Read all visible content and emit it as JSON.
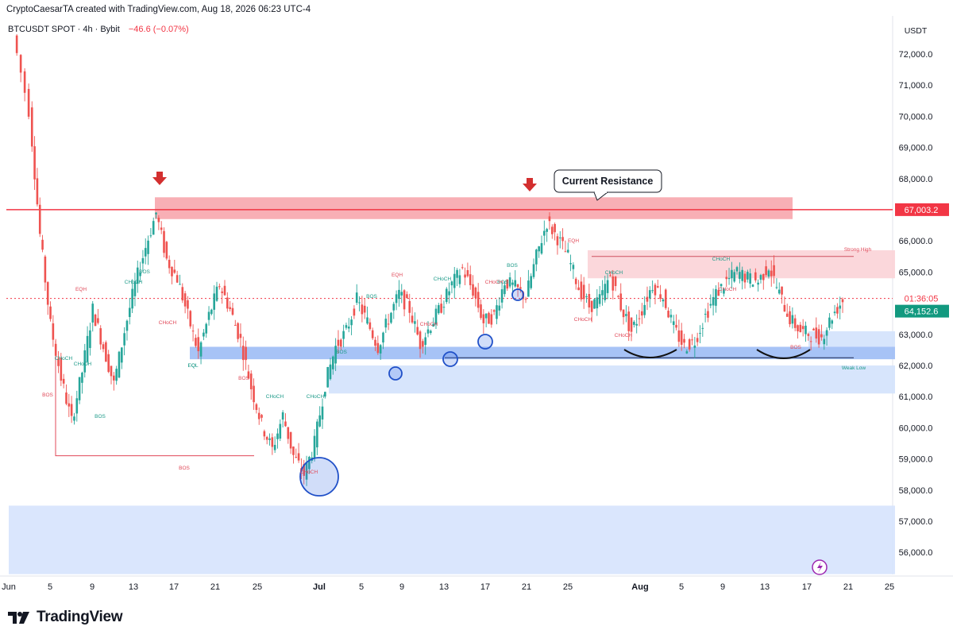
{
  "header": {
    "created_by": "CryptoCaesarTA created with TradingView.com, Aug 18, 2026 06:23 UTC-4"
  },
  "symbol": {
    "name": "BTCUSDT SPOT · 4h · Bybit",
    "change": "−46.6 (−0.07%)"
  },
  "footer": {
    "brand": "TradingView"
  },
  "colors": {
    "resistance_zone": "#f7a6ad",
    "support_zone": "#bcd3fb",
    "bull": "#26a69a",
    "bear": "#ef5350",
    "price_line": "#f23645",
    "arrow": "#d32f2f"
  },
  "chart_data": {
    "type": "candlestick",
    "y_unit": "USDT",
    "ylim": [
      55300,
      73000
    ],
    "y_ticks": [
      "72,000.0",
      "71,000.0",
      "70,000.0",
      "69,000.0",
      "68,000.0",
      "67,000.0",
      "66,000.0",
      "65,000.0",
      "64,000.0",
      "63,000.0",
      "62,000.0",
      "61,000.0",
      "60,000.0",
      "59,000.0",
      "58,000.0",
      "57,000.0",
      "56,000.0"
    ],
    "x_ticks": [
      "Jun",
      "5",
      "9",
      "13",
      "17",
      "21",
      "25",
      "Jul",
      "5",
      "9",
      "13",
      "17",
      "21",
      "25",
      "Aug",
      "5",
      "9",
      "13",
      "17",
      "21",
      "25"
    ],
    "price_labels": {
      "resistance": "67,003.2",
      "countdown": "01:36:05",
      "last_price": "64,152.6"
    },
    "price_path": [
      [
        0.5,
        72600
      ],
      [
        2,
        70200
      ],
      [
        3,
        66200
      ],
      [
        4,
        63300
      ],
      [
        5,
        61600
      ],
      [
        6,
        60200
      ],
      [
        7,
        61800
      ],
      [
        8,
        63800
      ],
      [
        9,
        62600
      ],
      [
        10,
        61400
      ],
      [
        11,
        63100
      ],
      [
        12,
        64600
      ],
      [
        13,
        65800
      ],
      [
        14,
        66900
      ],
      [
        15,
        65400
      ],
      [
        16,
        64800
      ],
      [
        17,
        63600
      ],
      [
        18,
        62400
      ],
      [
        19,
        63600
      ],
      [
        20,
        64600
      ],
      [
        21,
        63800
      ],
      [
        22,
        62800
      ],
      [
        23,
        61300
      ],
      [
        24,
        60100
      ],
      [
        25,
        59300
      ],
      [
        26,
        60400
      ],
      [
        27,
        59100
      ],
      [
        28,
        58500
      ],
      [
        29,
        59500
      ],
      [
        30,
        61400
      ],
      [
        31,
        62600
      ],
      [
        32,
        63100
      ],
      [
        33,
        64100
      ],
      [
        34,
        63400
      ],
      [
        35,
        62600
      ],
      [
        36,
        63500
      ],
      [
        37,
        64300
      ],
      [
        38,
        63800
      ],
      [
        39,
        62700
      ],
      [
        40,
        63300
      ],
      [
        41,
        63900
      ],
      [
        42,
        64600
      ],
      [
        43,
        65100
      ],
      [
        44,
        64400
      ],
      [
        45,
        63400
      ],
      [
        46,
        63600
      ],
      [
        47,
        64700
      ],
      [
        48,
        64500
      ],
      [
        49,
        64200
      ],
      [
        50,
        65500
      ],
      [
        51,
        66600
      ],
      [
        52,
        66100
      ],
      [
        53,
        65500
      ],
      [
        54,
        64500
      ],
      [
        55,
        63900
      ],
      [
        56,
        64100
      ],
      [
        57,
        64900
      ],
      [
        58,
        63900
      ],
      [
        59,
        63100
      ],
      [
        60,
        63800
      ],
      [
        61,
        64600
      ],
      [
        62,
        64200
      ],
      [
        63,
        63200
      ],
      [
        64,
        62600
      ],
      [
        65,
        62800
      ],
      [
        66,
        63600
      ],
      [
        67,
        64300
      ],
      [
        68,
        64700
      ],
      [
        69,
        65000
      ],
      [
        70,
        64800
      ],
      [
        71,
        64700
      ],
      [
        72,
        65200
      ],
      [
        73,
        64300
      ],
      [
        74,
        63500
      ],
      [
        75,
        63100
      ],
      [
        76,
        63000
      ],
      [
        77,
        62900
      ],
      [
        78,
        63600
      ],
      [
        79,
        64100
      ]
    ],
    "zones": [
      {
        "name": "resistance-zone",
        "from": "Jun 14",
        "to": "Aug 20",
        "y": [
          66700,
          67400
        ]
      },
      {
        "name": "strong-high-zone",
        "from": "Jul 26",
        "to": "Aug 28",
        "y": [
          64800,
          65700
        ]
      },
      {
        "name": "support-zone-upper",
        "from": "Jun 18",
        "to": "Aug 28",
        "y": [
          62200,
          62600
        ]
      },
      {
        "name": "support-zone-lower",
        "from": "Jul 2",
        "to": "Aug 28",
        "y": [
          61100,
          62000
        ]
      },
      {
        "name": "support-zone-right",
        "from": "Aug 14",
        "to": "Aug 28",
        "y": [
          62600,
          63100
        ]
      },
      {
        "name": "demand-zone",
        "from": "Jun 1",
        "to": "Aug 28",
        "y": [
          55300,
          57500
        ]
      }
    ],
    "callout": "Current Resistance",
    "structure_labels": [
      "EQH",
      "CHoCH",
      "BOS",
      "BOS",
      "CHoCH",
      "CHoCH",
      "BOS",
      "CHoCH",
      "EQL",
      "BOS",
      "EQL",
      "BOS",
      "CHoCH",
      "CHoCH",
      "CHoCH",
      "EQH",
      "BOS",
      "BOS",
      "CHoCH",
      "CHoCH",
      "BOS",
      "CHoCH",
      "BOS",
      "EQH",
      "CHoCH",
      "CHoCH",
      "CHoCH",
      "CHoCH",
      "CHoCH",
      "BOS",
      "Strong High",
      "Weak Low"
    ]
  }
}
